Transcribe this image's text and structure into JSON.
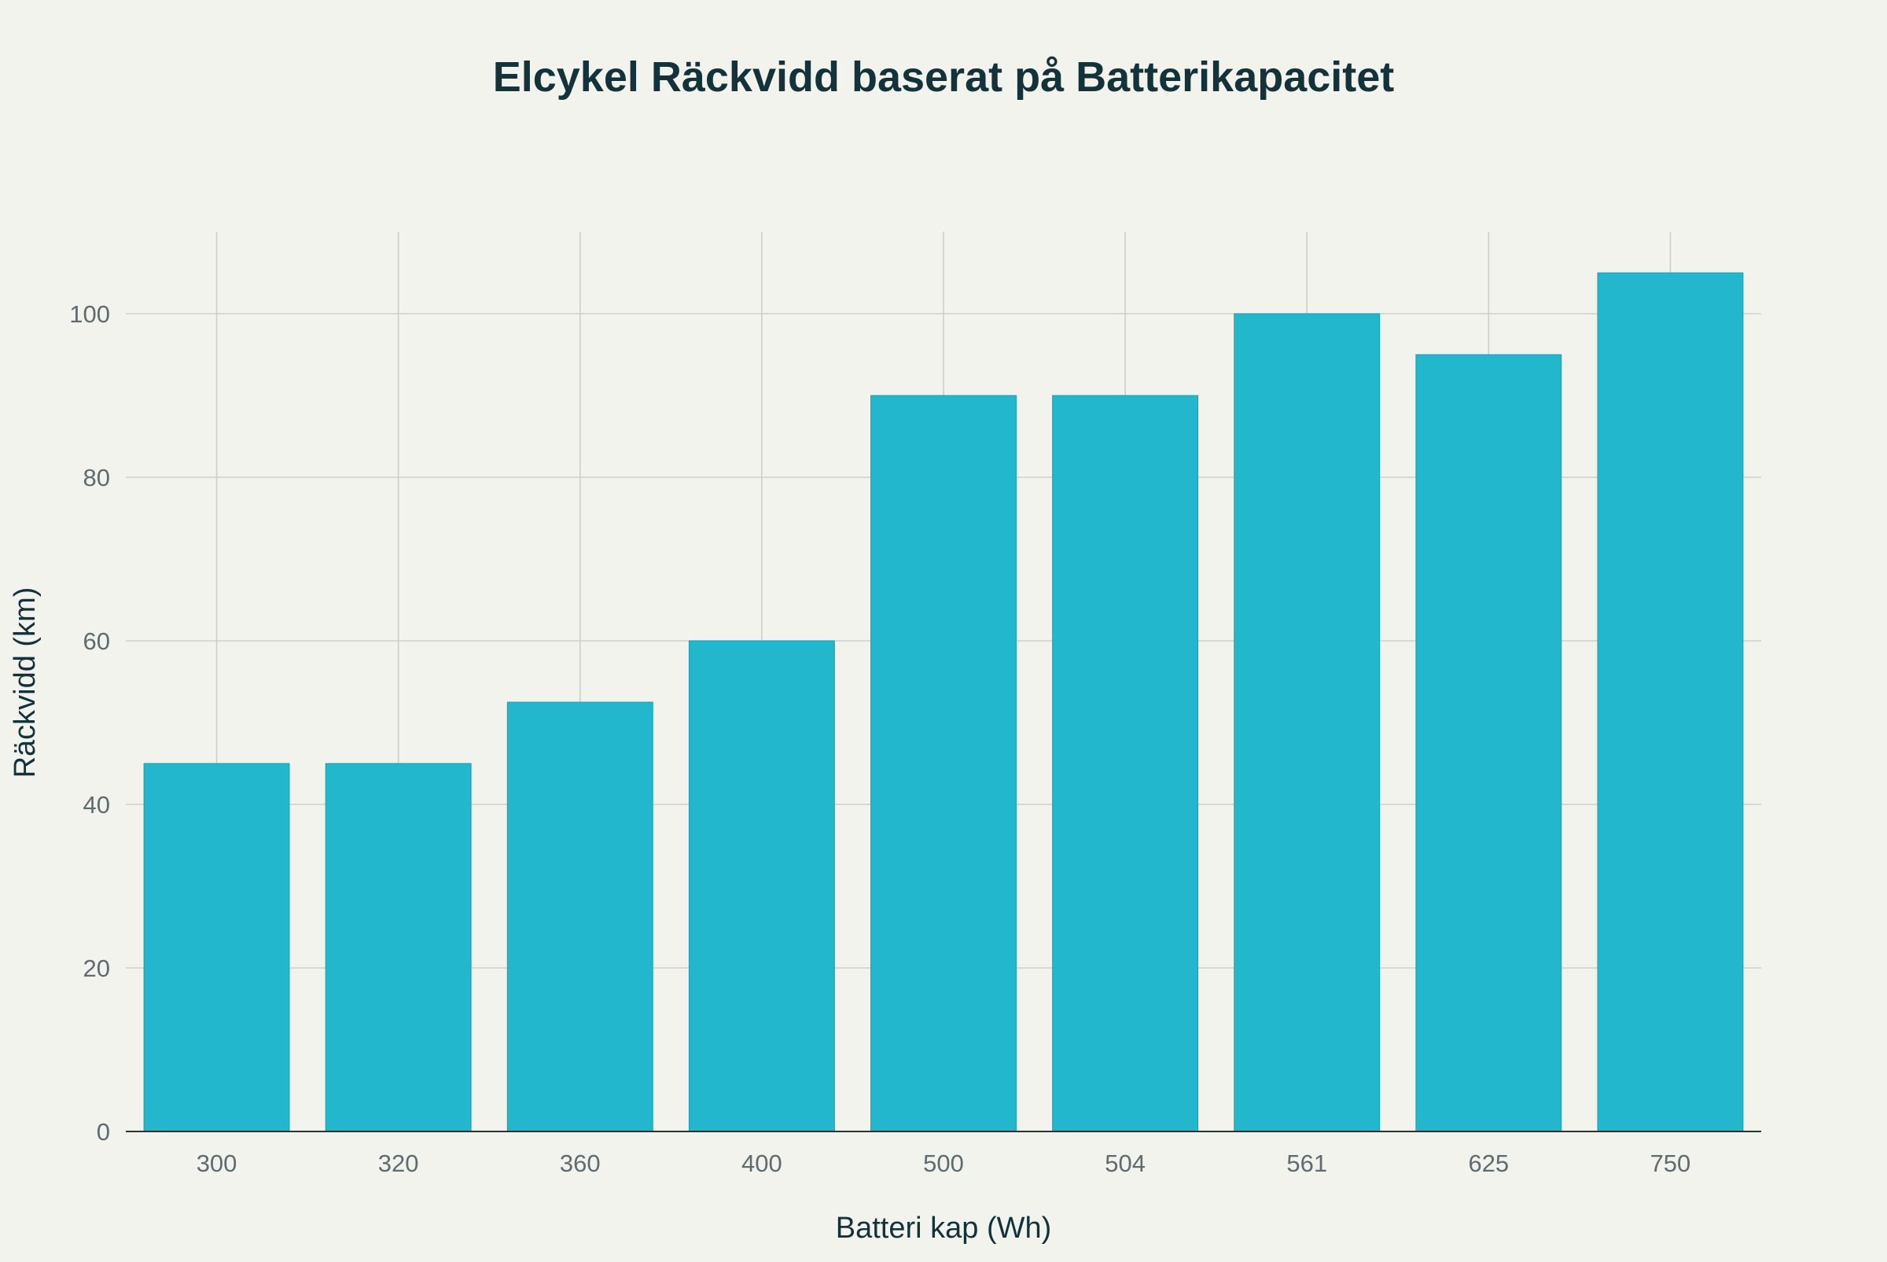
{
  "chart_data": {
    "type": "bar",
    "title": "Elcykel Räckvidd baserat på Batterikapacitet",
    "xlabel": "Batteri kap (Wh)",
    "ylabel": "Räckvidd (km)",
    "categories": [
      "300",
      "320",
      "360",
      "400",
      "500",
      "504",
      "561",
      "625",
      "750"
    ],
    "values": [
      45,
      45,
      52.5,
      60,
      90,
      90,
      100,
      95,
      105
    ],
    "ylim": [
      0,
      110
    ],
    "yticks": [
      0,
      20,
      40,
      60,
      80,
      100
    ],
    "grid": true,
    "bar_color": "#22b7cc"
  }
}
